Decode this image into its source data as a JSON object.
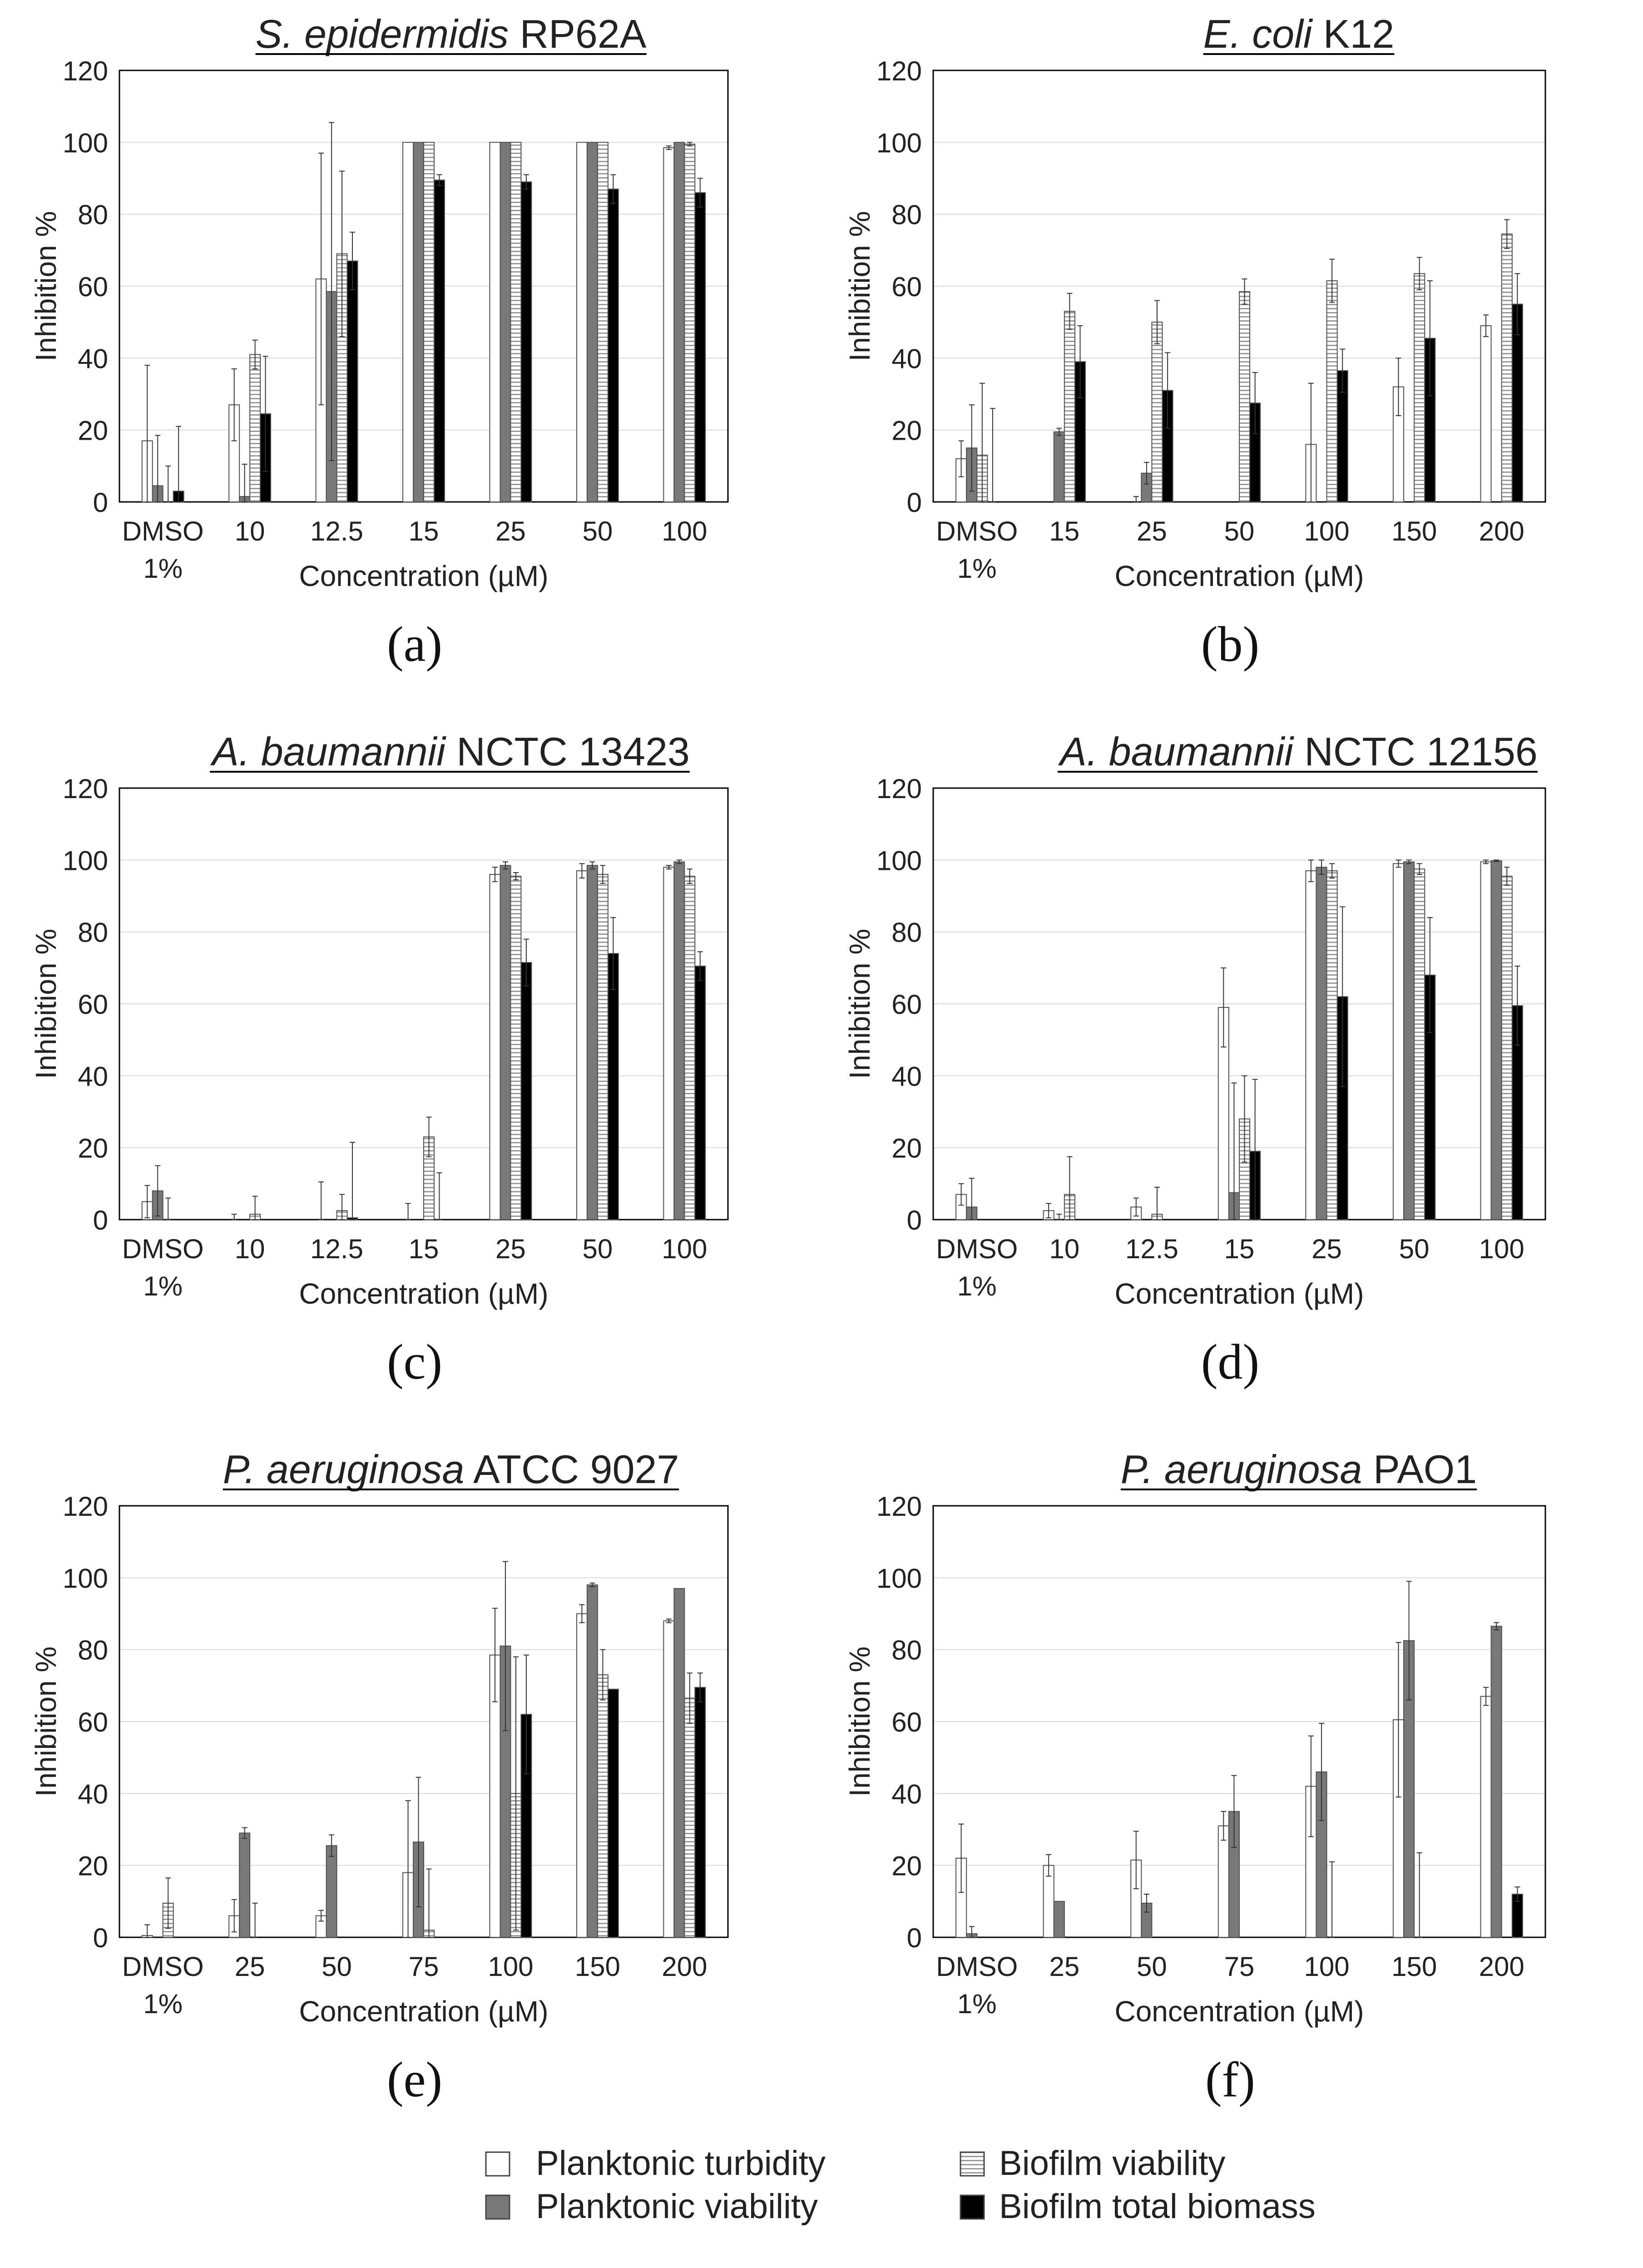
{
  "colors": {
    "planktonic_turbidity": "#ffffff",
    "planktonic_viability": "#787878",
    "biofilm_viability": "#e0e0e0",
    "biofilm_total_biomass": "#000000",
    "grid": "#d9d9d9",
    "axis": "#000000"
  },
  "legend": {
    "items": [
      {
        "key": "planktonic_turbidity",
        "label": "Planktonic turbidity",
        "pattern": "white"
      },
      {
        "key": "biofilm_viability",
        "label": "Biofilm viability",
        "pattern": "hatch"
      },
      {
        "key": "planktonic_viability",
        "label": "Planktonic viability",
        "pattern": "gray"
      },
      {
        "key": "biofilm_total_biomass",
        "label": "Biofilm total biomass",
        "pattern": "black"
      }
    ]
  },
  "chart_data": [
    {
      "panel": "(a)",
      "type": "bar",
      "title_italic": "S. epidermidis",
      "title_rest": " RP62A",
      "xlabel": "Concentration (µM)",
      "ylabel": "Inhibition %",
      "ylim": [
        0,
        120
      ],
      "yticks": [
        0,
        20,
        40,
        60,
        80,
        100,
        120
      ],
      "grid": true,
      "categories": [
        [
          "DMSO",
          "1%"
        ],
        [
          "10"
        ],
        [
          "12.5"
        ],
        [
          "15"
        ],
        [
          "25"
        ],
        [
          "50"
        ],
        [
          "100"
        ]
      ],
      "series": [
        {
          "name": "Planktonic turbidity",
          "values": [
            17,
            27,
            62,
            100,
            100,
            100,
            98.5
          ],
          "errors": [
            21,
            10,
            35,
            0,
            0,
            0,
            0.5
          ]
        },
        {
          "name": "Planktonic viability",
          "values": [
            4.5,
            1.5,
            58.5,
            100,
            100,
            100,
            100
          ],
          "errors": [
            14,
            9,
            47,
            0,
            0,
            0,
            0
          ]
        },
        {
          "name": "Biofilm viability",
          "values": [
            0,
            41,
            69,
            100,
            100,
            100,
            99.5
          ],
          "errors": [
            10,
            4,
            23,
            0,
            0,
            0,
            0.5
          ]
        },
        {
          "name": "Biofilm total biomass",
          "values": [
            3,
            24.5,
            67,
            89.5,
            89,
            87,
            86
          ],
          "errors": [
            18,
            16,
            8,
            1.5,
            2,
            4,
            4
          ]
        }
      ]
    },
    {
      "panel": "(b)",
      "type": "bar",
      "title_italic": "E. coli",
      "title_rest": " K12",
      "xlabel": "Concentration (µM)",
      "ylabel": "Inhibition %",
      "ylim": [
        0,
        120
      ],
      "yticks": [
        0,
        20,
        40,
        60,
        80,
        100,
        120
      ],
      "grid": true,
      "categories": [
        [
          "DMSO",
          "1%"
        ],
        [
          "15"
        ],
        [
          "25"
        ],
        [
          "50"
        ],
        [
          "100"
        ],
        [
          "150"
        ],
        [
          "200"
        ]
      ],
      "series": [
        {
          "name": "Planktonic turbidity",
          "values": [
            12,
            0,
            0,
            0,
            16,
            32,
            49
          ],
          "errors": [
            5,
            0,
            1.5,
            0,
            17,
            8,
            3
          ]
        },
        {
          "name": "Planktonic viability",
          "values": [
            15,
            19.5,
            8,
            0,
            0,
            0,
            0
          ],
          "errors": [
            12,
            1,
            3,
            0,
            0,
            0,
            0
          ]
        },
        {
          "name": "Biofilm viability",
          "values": [
            13,
            53,
            50,
            58.5,
            61.5,
            63.5,
            74.5
          ],
          "errors": [
            20,
            5,
            6,
            3.5,
            6,
            4.5,
            4
          ]
        },
        {
          "name": "Biofilm total biomass",
          "values": [
            0,
            39,
            31,
            27.5,
            36.5,
            45.5,
            55
          ],
          "errors": [
            26,
            10,
            10.5,
            8.5,
            6,
            16,
            8.5
          ]
        }
      ]
    },
    {
      "panel": "(c)",
      "type": "bar",
      "title_italic": "A. baumannii",
      "title_rest": " NCTC 13423",
      "xlabel": "Concentration (µM)",
      "ylabel": "Inhibition %",
      "ylim": [
        0,
        120
      ],
      "yticks": [
        0,
        20,
        40,
        60,
        80,
        100,
        120
      ],
      "grid": true,
      "categories": [
        [
          "DMSO",
          "1%"
        ],
        [
          "10"
        ],
        [
          "12.5"
        ],
        [
          "15"
        ],
        [
          "25"
        ],
        [
          "50"
        ],
        [
          "100"
        ]
      ],
      "series": [
        {
          "name": "Planktonic turbidity",
          "values": [
            5,
            0,
            0,
            0,
            96,
            97,
            98
          ],
          "errors": [
            4.5,
            1.5,
            10.5,
            4.5,
            2,
            2,
            0.5
          ]
        },
        {
          "name": "Planktonic viability",
          "values": [
            8,
            0,
            0,
            0,
            98.5,
            98.5,
            99.5
          ],
          "errors": [
            7,
            0,
            0,
            0,
            1,
            1,
            0.5
          ]
        },
        {
          "name": "Biofilm viability",
          "values": [
            0,
            1.5,
            2.5,
            23,
            95.5,
            96,
            95.5
          ],
          "errors": [
            6,
            5,
            4.5,
            5.5,
            1,
            2.5,
            2
          ]
        },
        {
          "name": "Biofilm total biomass",
          "values": [
            0,
            0,
            0.5,
            0,
            71.5,
            74,
            70.5
          ],
          "errors": [
            0,
            0,
            21,
            13,
            6.5,
            10,
            4
          ]
        }
      ]
    },
    {
      "panel": "(d)",
      "type": "bar",
      "title_italic": "A. baumannii",
      "title_rest": " NCTC 12156",
      "xlabel": "Concentration (µM)",
      "ylabel": "Inhibition %",
      "ylim": [
        0,
        120
      ],
      "yticks": [
        0,
        20,
        40,
        60,
        80,
        100,
        120
      ],
      "grid": true,
      "categories": [
        [
          "DMSO",
          "1%"
        ],
        [
          "10"
        ],
        [
          "12.5"
        ],
        [
          "15"
        ],
        [
          "25"
        ],
        [
          "50"
        ],
        [
          "100"
        ]
      ],
      "series": [
        {
          "name": "Planktonic turbidity",
          "values": [
            7,
            2.5,
            3.5,
            59,
            97,
            99,
            99.5
          ],
          "errors": [
            3,
            2,
            2.5,
            11,
            3,
            1,
            0.5
          ]
        },
        {
          "name": "Planktonic viability",
          "values": [
            3.5,
            0,
            0,
            7.5,
            98,
            99.5,
            99.8
          ],
          "errors": [
            8,
            1.5,
            0,
            30.5,
            2,
            0.5,
            0.2
          ]
        },
        {
          "name": "Biofilm viability",
          "values": [
            0,
            7,
            1.5,
            28,
            97,
            97.5,
            95.5
          ],
          "errors": [
            0,
            10.5,
            7.5,
            12,
            2,
            1.5,
            2.5
          ]
        },
        {
          "name": "Biofilm total biomass",
          "values": [
            0,
            0,
            0,
            19,
            62,
            68,
            59.5
          ],
          "errors": [
            0,
            0,
            0,
            20,
            25,
            16,
            11
          ]
        }
      ]
    },
    {
      "panel": "(e)",
      "type": "bar",
      "title_italic": "P. aeruginosa",
      "title_rest": " ATCC 9027",
      "xlabel": "Concentration (µM)",
      "ylabel": "Inhibition %",
      "ylim": [
        0,
        120
      ],
      "yticks": [
        0,
        20,
        40,
        60,
        80,
        100,
        120
      ],
      "grid": true,
      "categories": [
        [
          "DMSO",
          "1%"
        ],
        [
          "25"
        ],
        [
          "50"
        ],
        [
          "75"
        ],
        [
          "100"
        ],
        [
          "150"
        ],
        [
          "200"
        ]
      ],
      "series": [
        {
          "name": "Planktonic turbidity",
          "values": [
            0.5,
            6,
            6,
            18,
            78.5,
            90,
            88
          ],
          "errors": [
            3,
            4.5,
            1.5,
            20,
            13,
            2.5,
            0.5
          ]
        },
        {
          "name": "Planktonic viability",
          "values": [
            0,
            29,
            25.5,
            26.5,
            81,
            98,
            97
          ],
          "errors": [
            0,
            1.5,
            3,
            18,
            23.5,
            0.5,
            0
          ]
        },
        {
          "name": "Biofilm viability",
          "values": [
            9.5,
            0,
            0,
            2,
            40,
            73,
            66.5
          ],
          "errors": [
            7,
            9.5,
            0,
            17,
            38,
            7,
            7
          ]
        },
        {
          "name": "Biofilm total biomass",
          "values": [
            0,
            0,
            0,
            0,
            62,
            69,
            69.5
          ],
          "errors": [
            0,
            0,
            0,
            0,
            16.5,
            0,
            4
          ]
        }
      ]
    },
    {
      "panel": "(f)",
      "type": "bar",
      "title_italic": "P. aeruginosa",
      "title_rest": " PAO1",
      "xlabel": "Concentration (µM)",
      "ylabel": "Inhibition %",
      "ylim": [
        0,
        120
      ],
      "yticks": [
        0,
        20,
        40,
        60,
        80,
        100,
        120
      ],
      "grid": true,
      "categories": [
        [
          "DMSO",
          "1%"
        ],
        [
          "25"
        ],
        [
          "50"
        ],
        [
          "75"
        ],
        [
          "100"
        ],
        [
          "150"
        ],
        [
          "200"
        ]
      ],
      "series": [
        {
          "name": "Planktonic turbidity",
          "values": [
            22,
            20,
            21.5,
            31,
            42,
            60.5,
            67
          ],
          "errors": [
            9.5,
            3,
            8,
            4,
            14,
            21.5,
            2.5
          ]
        },
        {
          "name": "Planktonic viability",
          "values": [
            1,
            10,
            9.5,
            35,
            46,
            82.5,
            86.5
          ],
          "errors": [
            2,
            0,
            2.5,
            10,
            13.5,
            16.5,
            1
          ]
        },
        {
          "name": "Biofilm viability",
          "values": [
            0,
            0,
            0,
            0,
            0,
            0,
            0
          ],
          "errors": [
            0,
            0,
            0,
            0,
            21,
            23.5,
            0
          ]
        },
        {
          "name": "Biofilm total biomass",
          "values": [
            0,
            0,
            0,
            0,
            0,
            0,
            12
          ],
          "errors": [
            0,
            0,
            0,
            0,
            0,
            0,
            2
          ]
        }
      ]
    }
  ]
}
